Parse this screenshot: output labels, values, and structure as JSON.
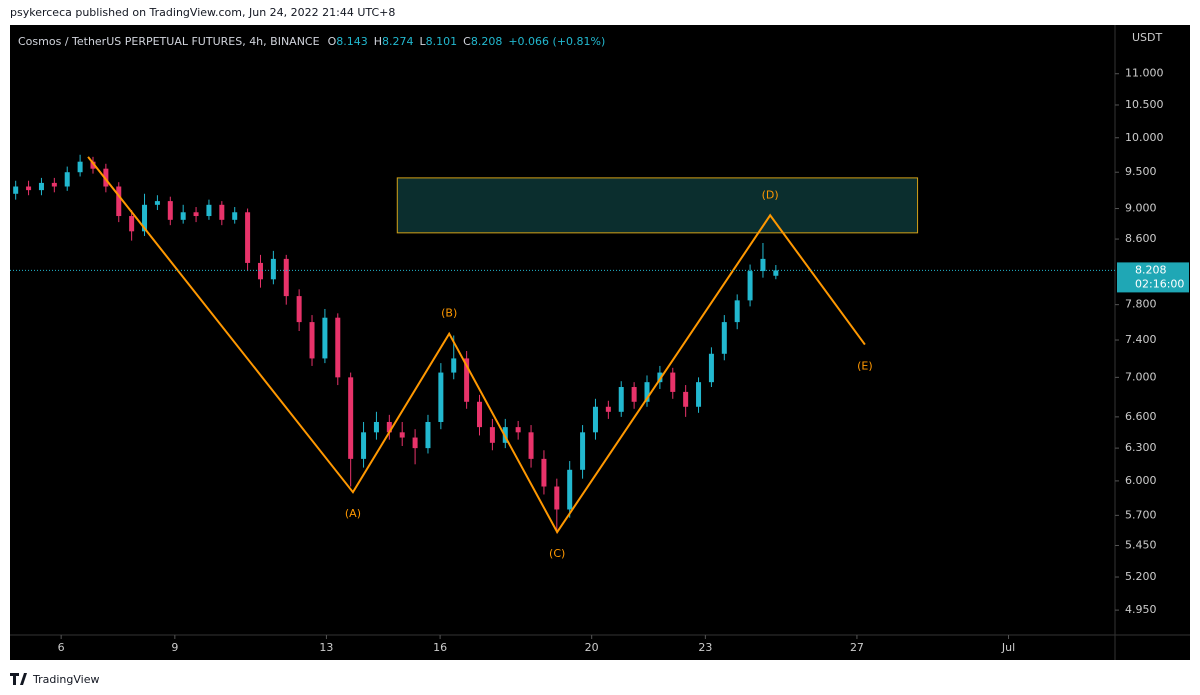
{
  "published": "psykerceca published on TradingView.com, Jun 24, 2022 21:44 UTC+8",
  "footer": "TradingView",
  "chart_data": {
    "type": "candlestick",
    "title": "Cosmos / TetherUS PERPETUAL FUTURES, 4h, BINANCE",
    "ohlc_labels": [
      "O",
      "H",
      "L",
      "C"
    ],
    "change": "+0.066 (+0.81%)",
    "y_unit": "USDT",
    "countdown": "02:16:00",
    "log_scale": true,
    "up_color": "#22b8cf",
    "down_color": "#e8336a",
    "x": [
      4.8,
      5.14,
      5.48,
      5.82,
      6.16,
      6.5,
      6.84,
      7.18,
      7.52,
      7.86,
      8.2,
      8.54,
      8.88,
      9.22,
      9.56,
      9.9,
      10.24,
      10.58,
      10.92,
      11.26,
      11.6,
      11.94,
      12.28,
      12.62,
      12.96,
      13.3,
      13.64,
      13.98,
      14.32,
      14.66,
      15,
      15.34,
      15.68,
      16.02,
      16.36,
      16.7,
      17.04,
      17.38,
      17.72,
      18.06,
      18.4,
      18.74,
      19.08,
      19.42,
      19.76,
      20.1,
      20.44,
      20.78,
      21.12,
      21.46,
      21.8,
      22.14,
      22.48,
      22.82,
      23.16,
      23.5,
      23.84,
      24.18,
      24.52,
      24.86
    ],
    "open": [
      9.2,
      9.3,
      9.25,
      9.35,
      9.3,
      9.5,
      9.65,
      9.55,
      9.3,
      8.9,
      8.7,
      9.05,
      9.1,
      8.85,
      8.95,
      8.9,
      9.05,
      8.85,
      8.95,
      8.3,
      8.1,
      8.35,
      7.9,
      7.6,
      7.2,
      7.65,
      7.0,
      6.2,
      6.45,
      6.55,
      6.45,
      6.4,
      6.3,
      6.55,
      7.05,
      7.2,
      6.75,
      6.5,
      6.35,
      6.5,
      6.45,
      6.2,
      5.95,
      5.75,
      6.1,
      6.45,
      6.7,
      6.65,
      6.9,
      6.75,
      6.95,
      7.05,
      6.85,
      6.7,
      6.95,
      7.25,
      7.6,
      7.85,
      8.2,
      8.143
    ],
    "high": [
      9.38,
      9.38,
      9.42,
      9.42,
      9.58,
      9.75,
      9.72,
      9.62,
      9.36,
      8.98,
      9.2,
      9.18,
      9.16,
      9.05,
      9.02,
      9.12,
      9.1,
      9.02,
      9.0,
      8.4,
      8.45,
      8.4,
      7.98,
      7.68,
      7.75,
      7.7,
      7.05,
      6.55,
      6.65,
      6.62,
      6.55,
      6.48,
      6.62,
      7.15,
      7.45,
      7.28,
      6.82,
      6.58,
      6.58,
      6.56,
      6.52,
      6.28,
      6.02,
      6.18,
      6.52,
      6.78,
      6.76,
      6.96,
      6.95,
      7.02,
      7.12,
      7.1,
      6.92,
      7.0,
      7.32,
      7.68,
      7.92,
      8.28,
      8.55,
      8.274
    ],
    "low": [
      9.12,
      9.18,
      9.18,
      9.22,
      9.24,
      9.44,
      9.48,
      9.22,
      8.82,
      8.58,
      8.64,
      8.98,
      8.78,
      8.8,
      8.82,
      8.85,
      8.78,
      8.8,
      8.2,
      8.0,
      8.04,
      7.8,
      7.5,
      7.12,
      7.15,
      6.92,
      5.95,
      6.12,
      6.38,
      6.38,
      6.32,
      6.15,
      6.25,
      6.48,
      6.98,
      6.68,
      6.42,
      6.28,
      6.3,
      6.38,
      6.12,
      5.88,
      5.55,
      5.68,
      6.02,
      6.38,
      6.58,
      6.6,
      6.68,
      6.7,
      6.88,
      6.78,
      6.6,
      6.64,
      6.9,
      7.18,
      7.52,
      7.78,
      8.12,
      8.101
    ],
    "close": [
      9.3,
      9.25,
      9.35,
      9.3,
      9.5,
      9.65,
      9.55,
      9.3,
      8.9,
      8.7,
      9.05,
      9.1,
      8.85,
      8.95,
      8.9,
      9.05,
      8.85,
      8.95,
      8.3,
      8.1,
      8.35,
      7.9,
      7.6,
      7.2,
      7.65,
      7.0,
      6.2,
      6.45,
      6.55,
      6.45,
      6.4,
      6.3,
      6.55,
      7.05,
      7.2,
      6.75,
      6.5,
      6.35,
      6.5,
      6.45,
      6.2,
      5.95,
      5.75,
      6.1,
      6.45,
      6.7,
      6.65,
      6.9,
      6.75,
      6.95,
      7.05,
      6.85,
      6.7,
      6.95,
      7.25,
      7.6,
      7.85,
      8.2,
      8.35,
      8.208
    ],
    "wave": {
      "color": "#ff9800",
      "x": [
        6.71,
        13.7,
        16.24,
        19.09,
        24.71,
        27.21
      ],
      "values": [
        9.72,
        5.9,
        7.47,
        5.56,
        8.91,
        7.35
      ],
      "labels": [
        null,
        "(A)",
        "(B)",
        "(C)",
        "(D)",
        "(E)"
      ]
    },
    "zone": {
      "x": [
        14.87,
        28.6
      ],
      "y": [
        8.68,
        9.42
      ],
      "color": "#0b2e2e",
      "border": "#d4a017"
    },
    "xlim": [
      4.65,
      33.81
    ],
    "xticks": [
      6,
      9,
      13,
      16,
      20,
      23,
      27,
      {
        "value": 31,
        "label": "Jul"
      }
    ],
    "ylim": [
      4.77,
      11.74
    ],
    "yticks": [
      {
        "value": 11,
        "label": "11.000"
      },
      {
        "value": 10.5,
        "label": "10.500"
      },
      {
        "value": 10,
        "label": "10.000"
      },
      {
        "value": 9.5,
        "label": "9.500"
      },
      {
        "value": 9,
        "label": "9.000"
      },
      {
        "value": 8.6,
        "label": "8.600"
      },
      {
        "value": 7.8,
        "label": "7.800"
      },
      {
        "value": 7.4,
        "label": "7.400"
      },
      {
        "value": 7,
        "label": "7.000"
      },
      {
        "value": 6.6,
        "label": "6.600"
      },
      {
        "value": 6.3,
        "label": "6.300"
      },
      {
        "value": 6,
        "label": "6.000"
      },
      {
        "value": 5.7,
        "label": "5.700"
      },
      {
        "value": 5.45,
        "label": "5.450"
      },
      {
        "value": 5.2,
        "label": "5.200"
      },
      {
        "value": 4.95,
        "label": "4.950"
      }
    ]
  }
}
